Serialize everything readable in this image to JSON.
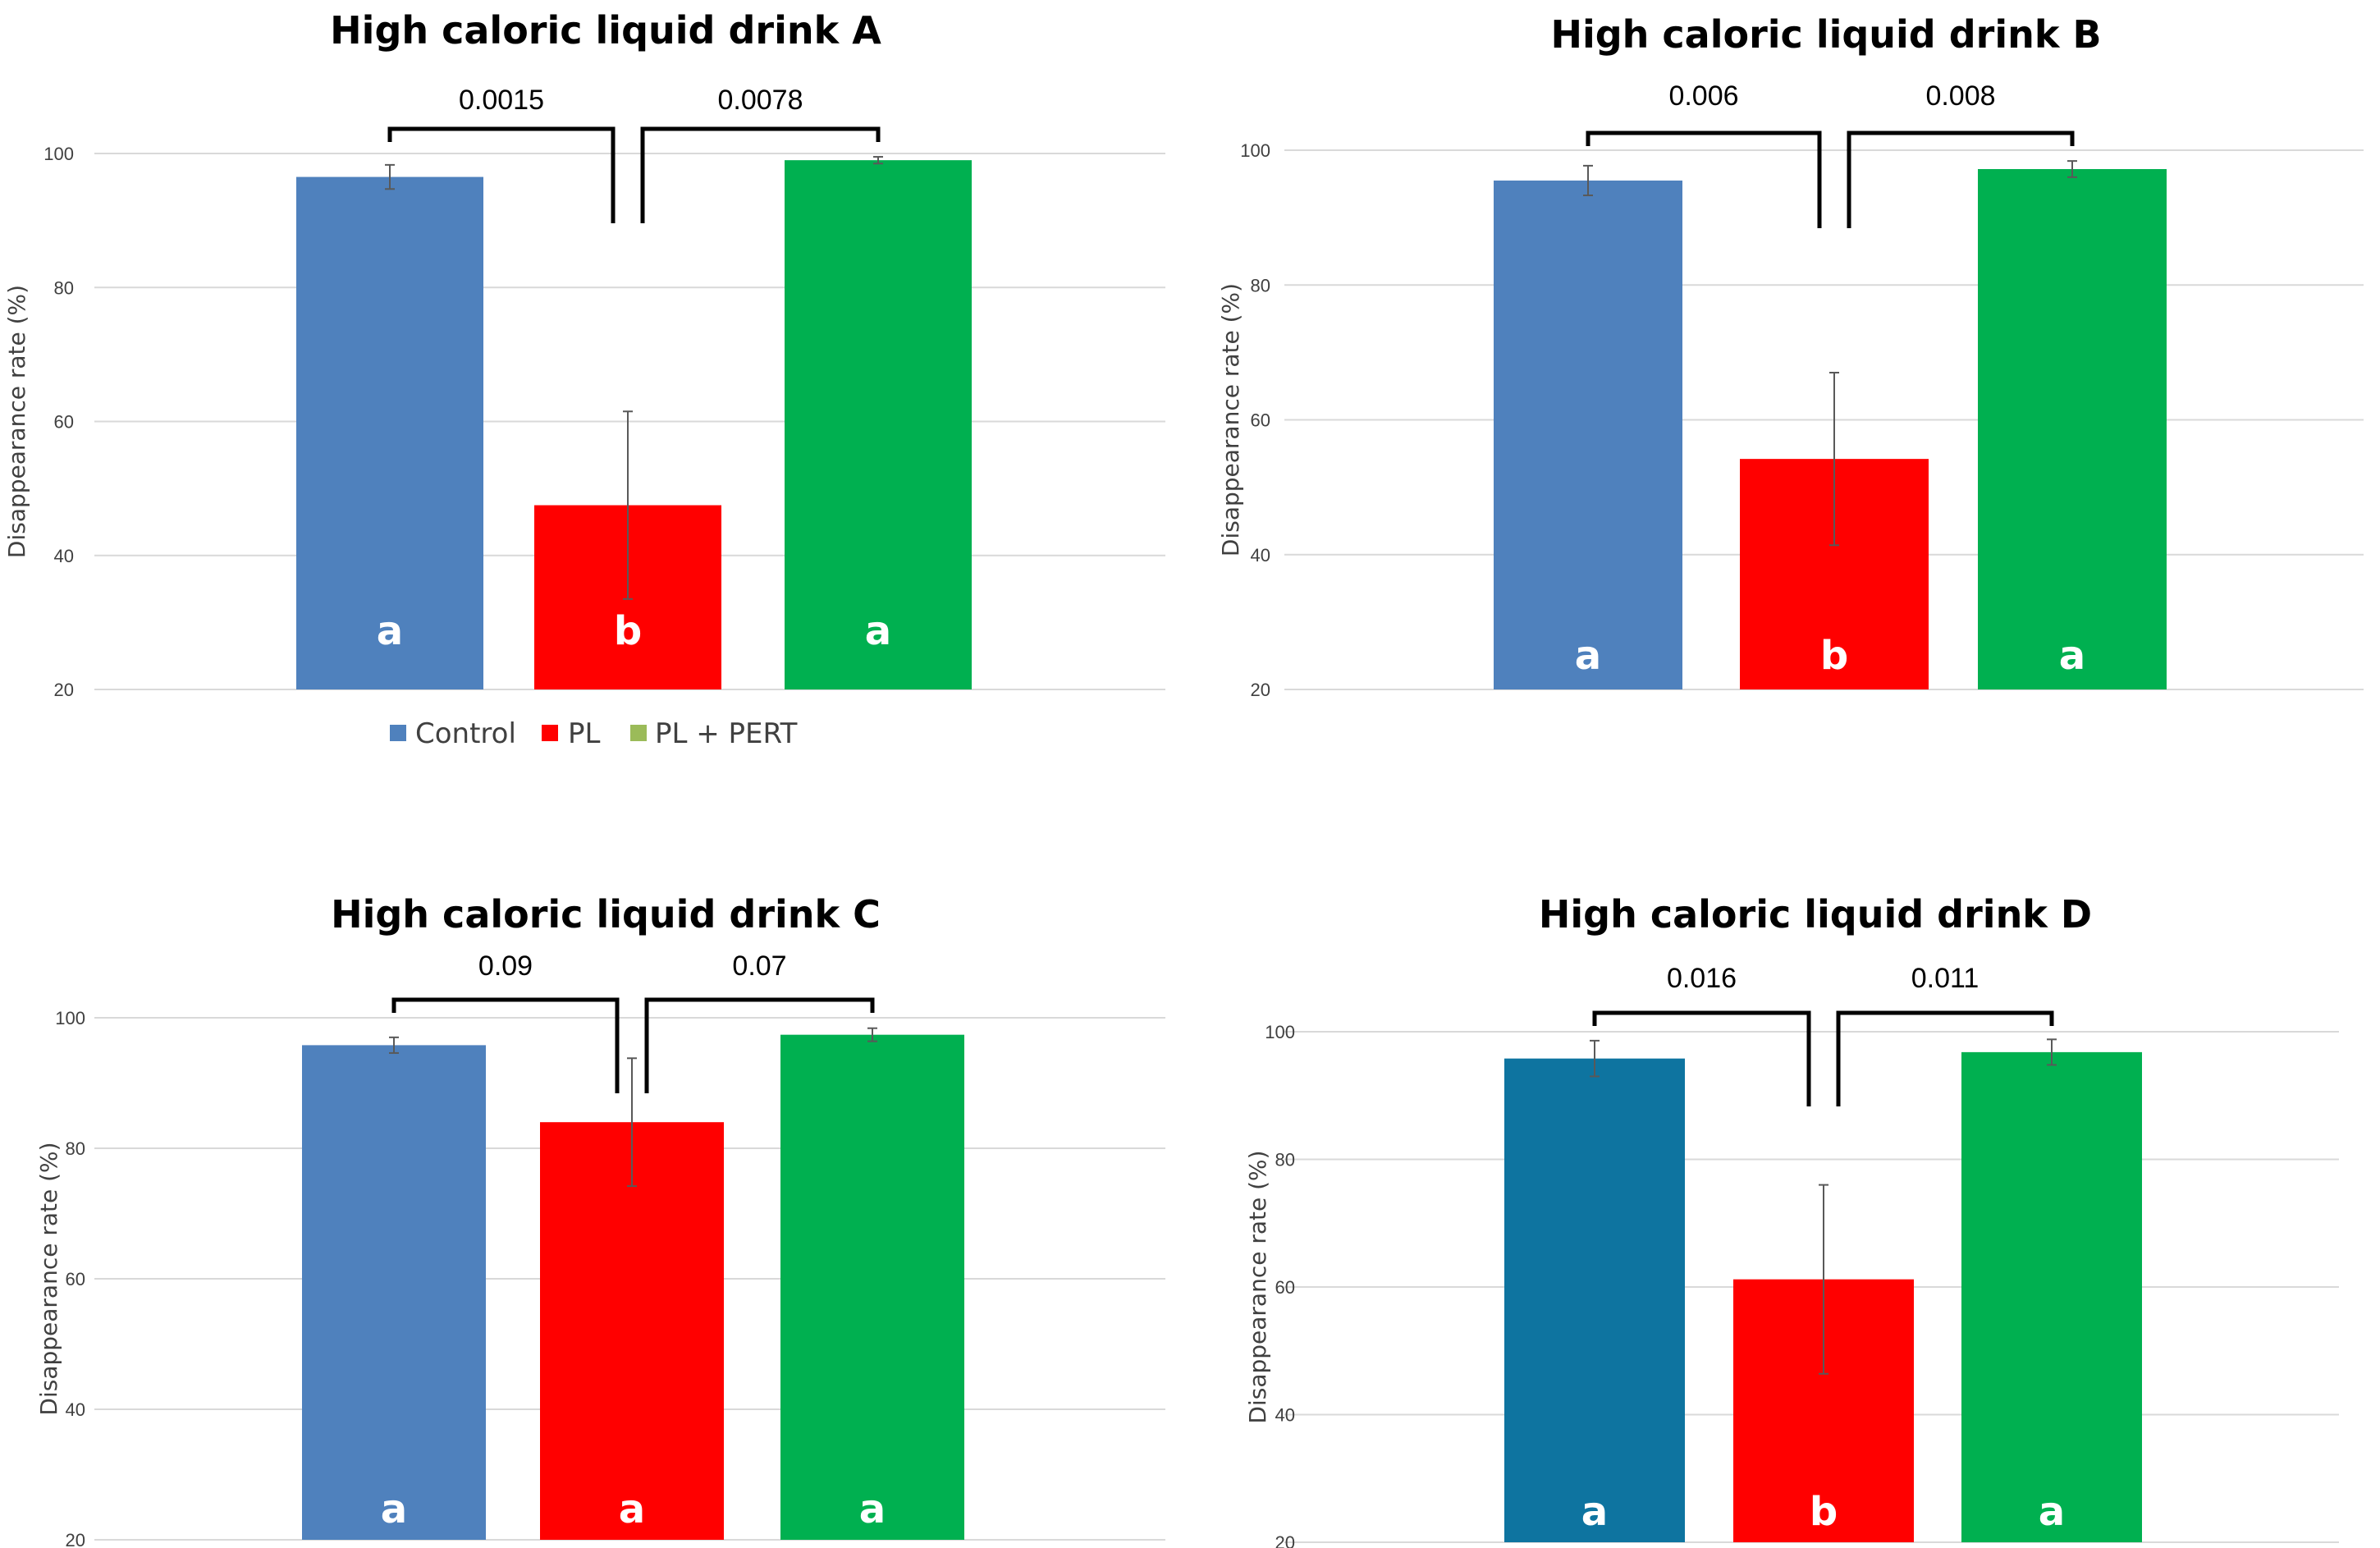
{
  "colors": {
    "control": "#4F81BD",
    "pl": "#FF0000",
    "pl_pert": "#00B050",
    "control_d": "#0E74A0",
    "legend_pl_pert": "#9BBB59",
    "grid": "#D9D9D9",
    "axis_text": "#404040"
  },
  "legend": {
    "items": [
      {
        "label": "Control",
        "color_key": "control"
      },
      {
        "label": "PL",
        "color_key": "pl"
      },
      {
        "label": "PL + PERT",
        "color_key": "legend_pl_pert"
      }
    ]
  },
  "chart_data": [
    {
      "type": "bar",
      "title": "High caloric liquid drink A",
      "ylabel": "Disappearance rate (%)",
      "xlabel": "",
      "ylim": [
        20,
        100
      ],
      "yticks": [
        "20",
        "40",
        "60",
        "80",
        "100"
      ],
      "categories": [
        "Control",
        "PL",
        "PL + PERT"
      ],
      "values": [
        96.5,
        47.5,
        99
      ],
      "errors": [
        1.8,
        14,
        0.5
      ],
      "letters": [
        "a",
        "b",
        "a"
      ],
      "comparisons": [
        {
          "label": "0.0015",
          "from": 0,
          "to": 1
        },
        {
          "label": "0.0078",
          "from": 1,
          "to": 2
        }
      ],
      "bar_color_keys": [
        "control",
        "pl",
        "pl_pert"
      ],
      "grid": true,
      "legend": "bottom"
    },
    {
      "type": "bar",
      "title": "High caloric liquid drink B",
      "ylabel": "Disappearance rate (%)",
      "xlabel": "",
      "ylim": [
        20,
        100
      ],
      "yticks": [
        "20",
        "40",
        "60",
        "80",
        "100"
      ],
      "categories": [
        "Control",
        "PL",
        "PL + PERT"
      ],
      "values": [
        95.5,
        54.2,
        97.2
      ],
      "errors": [
        2.2,
        12.8,
        1.2
      ],
      "letters": [
        "a",
        "b",
        "a"
      ],
      "comparisons": [
        {
          "label": "0.006",
          "from": 0,
          "to": 1
        },
        {
          "label": "0.008",
          "from": 1,
          "to": 2
        }
      ],
      "bar_color_keys": [
        "control",
        "pl",
        "pl_pert"
      ],
      "grid": true
    },
    {
      "type": "bar",
      "title": "High caloric liquid drink C",
      "ylabel": "Disappearance rate (%)",
      "xlabel": "",
      "ylim": [
        20,
        100
      ],
      "yticks": [
        "20",
        "40",
        "60",
        "80",
        "100"
      ],
      "categories": [
        "Control",
        "PL",
        "PL + PERT"
      ],
      "values": [
        95.8,
        84,
        97.4
      ],
      "errors": [
        1.2,
        9.8,
        1
      ],
      "letters": [
        "a",
        "a",
        "a"
      ],
      "comparisons": [
        {
          "label": "0.09",
          "from": 0,
          "to": 1
        },
        {
          "label": "0.07",
          "from": 1,
          "to": 2
        }
      ],
      "bar_color_keys": [
        "control",
        "pl",
        "pl_pert"
      ],
      "grid": true
    },
    {
      "type": "bar",
      "title": "High caloric liquid drink D",
      "ylabel": "Disappearance rate (%)",
      "xlabel": "",
      "ylim": [
        20,
        100
      ],
      "yticks": [
        "20",
        "40",
        "60",
        "80",
        "100"
      ],
      "categories": [
        "Control",
        "PL",
        "PL + PERT"
      ],
      "values": [
        95.8,
        61.2,
        96.8
      ],
      "errors": [
        2.8,
        14.8,
        2
      ],
      "letters": [
        "a",
        "b",
        "a"
      ],
      "comparisons": [
        {
          "label": "0.016",
          "from": 0,
          "to": 1
        },
        {
          "label": "0.011",
          "from": 1,
          "to": 2
        }
      ],
      "bar_color_keys": [
        "control_d",
        "pl",
        "pl_pert"
      ],
      "grid": true
    }
  ]
}
